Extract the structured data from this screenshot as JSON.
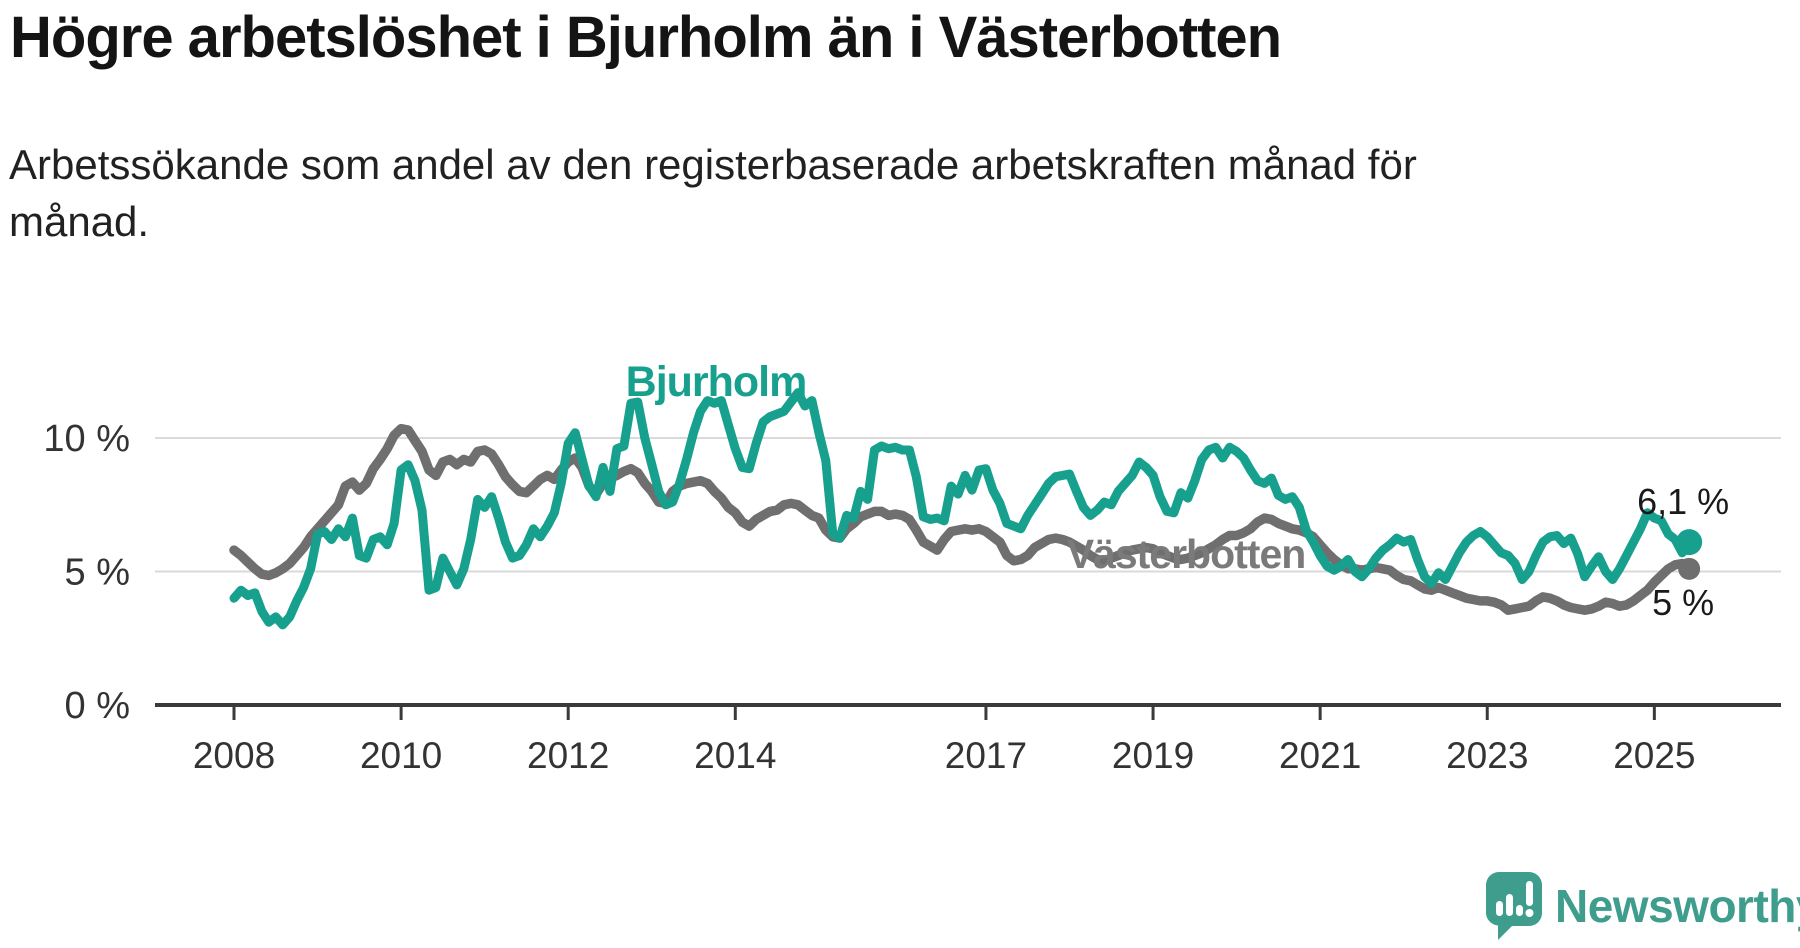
{
  "title": "Högre arbetslöshet i Bjurholm än i Västerbotten",
  "subtitle": {
    "line1": "Arbetssökande som andel av den registerbaserade arbetskraften månad för",
    "line2": "månad."
  },
  "colors": {
    "bjurholm_teal": "#18a08e",
    "vasterbotten_gray": "#6f6f6f",
    "gridline": "#dadada",
    "axis": "#3a3a3a",
    "text_dark": "#1a1a1a",
    "logo_teal": "#3e9d8d"
  },
  "footer": {
    "brand": "Newsworthy",
    "logo_icon": "speech-bubble-bar-chart-icon"
  },
  "chart_data": {
    "type": "line",
    "title": "Högre arbetslöshet i Bjurholm än i Västerbotten",
    "subtitle": "Arbetssökande som andel av den registerbaserade arbetskraften månad för månad.",
    "frequency": "monthly",
    "x_start": "2008-01",
    "x_end": "2025-06",
    "xlabel": "",
    "ylabel": "",
    "ylim": [
      0,
      12.3
    ],
    "grid": "horizontal-only",
    "x_ticks": [
      2008,
      2010,
      2012,
      2014,
      2017,
      2019,
      2021,
      2023,
      2025
    ],
    "y_ticks": [
      {
        "value": 0,
        "label": "0 %"
      },
      {
        "value": 5,
        "label": "5 %"
      },
      {
        "value": 10,
        "label": "10 %"
      }
    ],
    "series": [
      {
        "name": "Bjurholm",
        "color": "#18a08e",
        "end_label": "6,1 %",
        "end_value": 6.1,
        "values": [
          4.0,
          4.3,
          4.1,
          4.2,
          3.5,
          3.1,
          3.3,
          3.0,
          3.3,
          3.9,
          4.4,
          5.1,
          6.4,
          6.5,
          6.2,
          6.6,
          6.3,
          7.0,
          5.6,
          5.5,
          6.2,
          6.3,
          6.0,
          6.8,
          8.8,
          9.0,
          8.4,
          7.3,
          4.3,
          4.4,
          5.5,
          5.0,
          4.5,
          5.1,
          6.2,
          7.7,
          7.4,
          7.8,
          7.0,
          6.1,
          5.5,
          5.6,
          6.0,
          6.6,
          6.3,
          6.7,
          7.2,
          8.3,
          9.8,
          10.2,
          9.2,
          8.2,
          7.8,
          8.9,
          8.0,
          9.6,
          9.7,
          11.3,
          11.35,
          10.0,
          9.0,
          8.0,
          7.5,
          7.6,
          8.3,
          9.2,
          10.2,
          11.0,
          11.4,
          11.3,
          11.4,
          10.5,
          9.6,
          8.9,
          8.85,
          9.8,
          10.6,
          10.8,
          10.9,
          11.0,
          11.35,
          11.7,
          11.2,
          11.4,
          10.2,
          9.15,
          6.4,
          6.25,
          7.1,
          7.0,
          8.0,
          7.7,
          9.55,
          9.7,
          9.6,
          9.65,
          9.55,
          9.55,
          8.55,
          7.05,
          6.95,
          7.0,
          6.9,
          8.2,
          7.9,
          8.6,
          8.05,
          8.8,
          8.85,
          8.05,
          7.55,
          6.8,
          6.7,
          6.6,
          7.1,
          7.5,
          7.9,
          8.3,
          8.55,
          8.6,
          8.65,
          8.0,
          7.4,
          7.1,
          7.3,
          7.6,
          7.5,
          8.0,
          8.3,
          8.6,
          9.1,
          8.9,
          8.6,
          7.8,
          7.25,
          7.2,
          7.95,
          7.75,
          8.4,
          9.2,
          9.55,
          9.65,
          9.25,
          9.65,
          9.5,
          9.25,
          8.8,
          8.4,
          8.3,
          8.5,
          7.85,
          7.7,
          7.8,
          7.4,
          6.55,
          6.1,
          5.6,
          5.2,
          5.05,
          5.2,
          5.45,
          5.0,
          4.8,
          5.1,
          5.5,
          5.8,
          6.0,
          6.25,
          6.1,
          6.2,
          5.45,
          4.8,
          4.55,
          4.95,
          4.7,
          5.2,
          5.7,
          6.1,
          6.35,
          6.5,
          6.3,
          6.0,
          5.7,
          5.6,
          5.3,
          4.7,
          5.0,
          5.6,
          6.1,
          6.3,
          6.35,
          6.05,
          6.25,
          5.65,
          4.8,
          5.2,
          5.55,
          5.0,
          4.7,
          5.1,
          5.6,
          6.1,
          6.6,
          7.2,
          7.0,
          6.9,
          6.4,
          6.2,
          5.7,
          6.1
        ]
      },
      {
        "name": "Västerbotten",
        "color": "#6f6f6f",
        "end_label": "5 %",
        "end_value": 5.0,
        "values": [
          5.8,
          5.6,
          5.35,
          5.1,
          4.9,
          4.85,
          4.95,
          5.1,
          5.3,
          5.6,
          5.9,
          6.3,
          6.6,
          6.9,
          7.2,
          7.5,
          8.2,
          8.35,
          8.05,
          8.3,
          8.85,
          9.2,
          9.6,
          10.1,
          10.35,
          10.3,
          9.9,
          9.5,
          8.8,
          8.6,
          9.1,
          9.2,
          9.0,
          9.2,
          9.1,
          9.5,
          9.55,
          9.4,
          9.0,
          8.55,
          8.25,
          8.0,
          7.95,
          8.2,
          8.45,
          8.6,
          8.45,
          8.8,
          9.1,
          9.25,
          8.9,
          8.2,
          7.9,
          8.3,
          8.5,
          8.6,
          8.75,
          8.85,
          8.7,
          8.3,
          8.0,
          7.6,
          7.55,
          8.0,
          8.2,
          8.3,
          8.35,
          8.4,
          8.3,
          8.0,
          7.75,
          7.4,
          7.2,
          6.85,
          6.7,
          6.95,
          7.1,
          7.25,
          7.3,
          7.5,
          7.55,
          7.5,
          7.3,
          7.1,
          7.0,
          6.55,
          6.3,
          6.25,
          6.6,
          6.8,
          7.05,
          7.15,
          7.25,
          7.25,
          7.1,
          7.15,
          7.1,
          6.95,
          6.55,
          6.1,
          5.95,
          5.8,
          6.2,
          6.5,
          6.55,
          6.6,
          6.55,
          6.6,
          6.5,
          6.3,
          6.1,
          5.6,
          5.4,
          5.45,
          5.6,
          5.9,
          6.05,
          6.2,
          6.25,
          6.2,
          6.1,
          5.95,
          5.8,
          5.6,
          5.45,
          5.4,
          5.5,
          5.6,
          5.7,
          5.8,
          5.85,
          5.9,
          5.85,
          5.7,
          5.6,
          5.5,
          5.45,
          5.5,
          5.6,
          5.7,
          5.85,
          6.0,
          6.2,
          6.35,
          6.35,
          6.45,
          6.6,
          6.85,
          7.0,
          6.95,
          6.8,
          6.7,
          6.6,
          6.55,
          6.45,
          6.3,
          6.0,
          5.7,
          5.45,
          5.25,
          5.1,
          5.1,
          5.05,
          5.1,
          5.15,
          5.1,
          5.05,
          4.85,
          4.7,
          4.65,
          4.5,
          4.35,
          4.3,
          4.4,
          4.3,
          4.2,
          4.1,
          4.0,
          3.95,
          3.9,
          3.9,
          3.85,
          3.75,
          3.55,
          3.6,
          3.65,
          3.7,
          3.9,
          4.05,
          4.0,
          3.9,
          3.75,
          3.65,
          3.6,
          3.55,
          3.6,
          3.7,
          3.85,
          3.8,
          3.7,
          3.75,
          3.9,
          4.1,
          4.3,
          4.6,
          4.85,
          5.1,
          5.25,
          5.3,
          5.1
        ]
      }
    ],
    "legend_position": "inline-labels"
  }
}
